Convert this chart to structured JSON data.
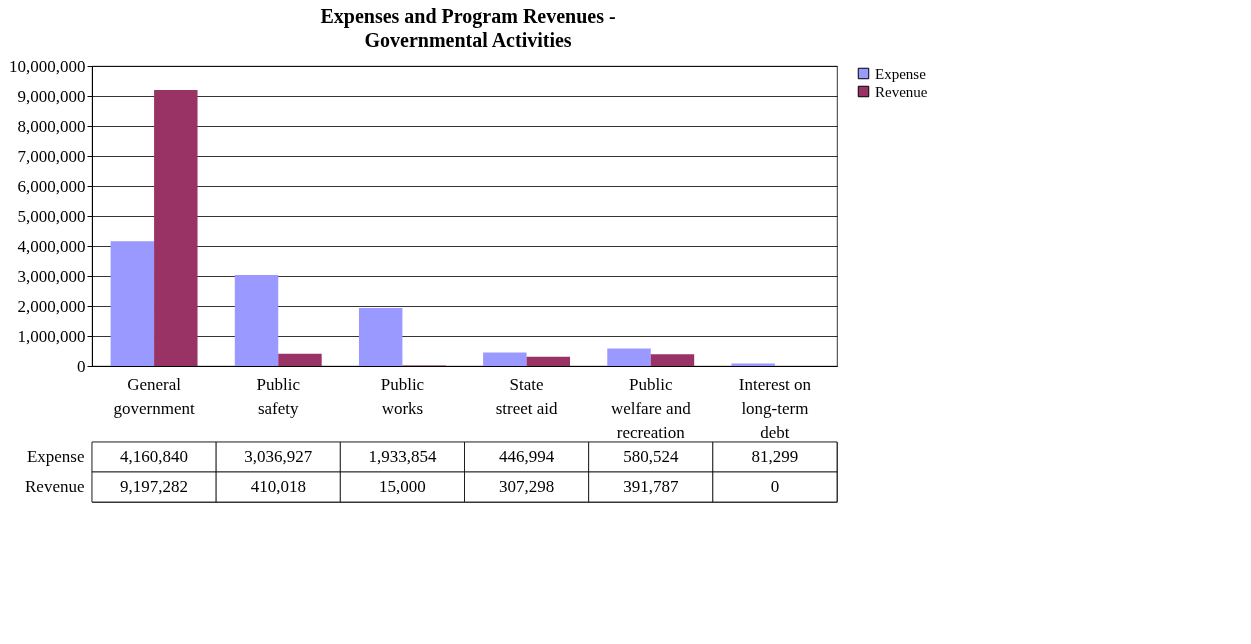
{
  "chart_data": {
    "type": "bar",
    "title": "Expenses and Program Revenues - Governmental Activities",
    "categories": [
      "General government",
      "Public safety",
      "Public works",
      "State street aid",
      "Public welfare and recreation",
      "Interest on long-term debt"
    ],
    "series": [
      {
        "name": "Expense",
        "color": "#9999ff",
        "values": [
          4160840,
          3036927,
          1933854,
          446994,
          580524,
          81299
        ],
        "value_labels": [
          "4,160,840",
          "3,036,927",
          "1,933,854",
          "446,994",
          "580,524",
          "81,299"
        ]
      },
      {
        "name": "Revenue",
        "color": "#993366",
        "values": [
          9197282,
          410018,
          15000,
          307298,
          391787,
          0
        ],
        "value_labels": [
          "9,197,282",
          "410,018",
          "15,000",
          "307,298",
          "391,787",
          "0"
        ]
      }
    ],
    "ylim": [
      0,
      10000000
    ],
    "yticks": [
      {
        "value": 0,
        "label": "0"
      },
      {
        "value": 1000000,
        "label": "1,000,000"
      },
      {
        "value": 2000000,
        "label": "2,000,000"
      },
      {
        "value": 3000000,
        "label": "3,000,000"
      },
      {
        "value": 4000000,
        "label": "4,000,000"
      },
      {
        "value": 5000000,
        "label": "5,000,000"
      },
      {
        "value": 6000000,
        "label": "6,000,000"
      },
      {
        "value": 7000000,
        "label": "7,000,000"
      },
      {
        "value": 8000000,
        "label": "8,000,000"
      },
      {
        "value": 9000000,
        "label": "9,000,000"
      },
      {
        "value": 10000000,
        "label": "10,000,000"
      }
    ],
    "grid": "y",
    "legend": "right"
  }
}
